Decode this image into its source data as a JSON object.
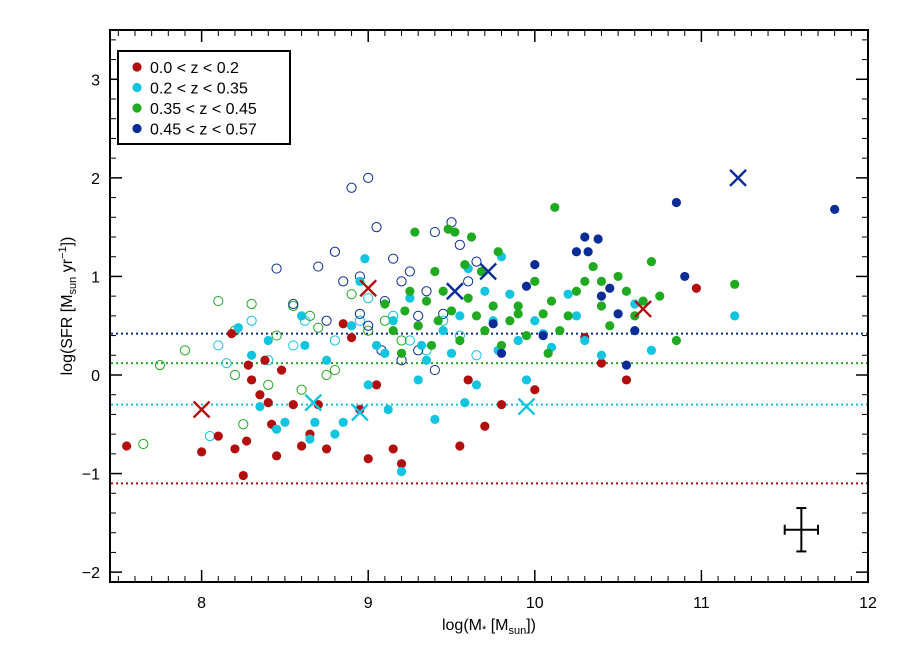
{
  "chart_data": {
    "type": "scatter",
    "title": "",
    "xlabel": "log(M* [Msun])",
    "xlabel_parts": {
      "pre": "log(M",
      "star": "*",
      "mid": " [M",
      "sub": "sun",
      "post": "])"
    },
    "ylabel": "log(SFR [Msun yr^-1])",
    "ylabel_parts": {
      "pre": "log(SFR [M",
      "sub": "sun",
      "mid": " yr",
      "sup": "−1",
      "post": "])"
    },
    "xlim": [
      7.45,
      12.0
    ],
    "ylim": [
      -2.1,
      3.5
    ],
    "xticks": [
      8,
      9,
      10,
      11,
      12
    ],
    "xtick_labels": [
      "8",
      "9",
      "10",
      "11",
      "12"
    ],
    "yticks": [
      -2,
      -1,
      0,
      1,
      2,
      3
    ],
    "ytick_labels": [
      "−2",
      "−1",
      "0",
      "1",
      "2",
      "3"
    ],
    "grid": false,
    "legend_position": "top-left",
    "series": [
      {
        "name": "0.0 < z < 0.2",
        "color": "#b30e0e",
        "sfr_limit": -1.1,
        "filled": [
          [
            7.55,
            -0.72
          ],
          [
            8.0,
            -0.78
          ],
          [
            8.1,
            -0.62
          ],
          [
            8.18,
            0.42
          ],
          [
            8.2,
            -0.75
          ],
          [
            8.25,
            -1.02
          ],
          [
            8.27,
            -0.67
          ],
          [
            8.28,
            0.1
          ],
          [
            8.3,
            -0.05
          ],
          [
            8.35,
            -0.2
          ],
          [
            8.38,
            0.15
          ],
          [
            8.4,
            -0.28
          ],
          [
            8.42,
            -0.5
          ],
          [
            8.45,
            -0.82
          ],
          [
            8.48,
            0.05
          ],
          [
            8.55,
            -0.3
          ],
          [
            8.6,
            -0.72
          ],
          [
            8.65,
            -0.6
          ],
          [
            8.7,
            -0.3
          ],
          [
            8.75,
            -0.75
          ],
          [
            8.85,
            0.52
          ],
          [
            8.9,
            0.38
          ],
          [
            8.95,
            -0.35
          ],
          [
            9.0,
            -0.85
          ],
          [
            9.05,
            -0.1
          ],
          [
            9.15,
            -0.75
          ],
          [
            9.2,
            -0.9
          ],
          [
            9.3,
            0.5
          ],
          [
            9.55,
            -0.72
          ],
          [
            9.6,
            -0.05
          ],
          [
            9.7,
            -0.52
          ],
          [
            9.8,
            -0.3
          ],
          [
            10.0,
            -0.15
          ],
          [
            10.3,
            0.38
          ],
          [
            10.4,
            0.12
          ],
          [
            10.55,
            -0.05
          ],
          [
            10.97,
            0.88
          ]
        ],
        "open": [],
        "crosses": [
          [
            8.0,
            -0.35
          ],
          [
            9.0,
            0.88
          ],
          [
            10.65,
            0.67
          ]
        ]
      },
      {
        "name": "0.2 < z < 0.35",
        "color": "#11c4e0",
        "sfr_limit": -0.3,
        "filled": [
          [
            8.22,
            0.48
          ],
          [
            8.3,
            0.2
          ],
          [
            8.35,
            -0.32
          ],
          [
            8.4,
            0.35
          ],
          [
            8.45,
            -0.55
          ],
          [
            8.5,
            -0.48
          ],
          [
            8.6,
            0.6
          ],
          [
            8.62,
            0.3
          ],
          [
            8.65,
            -0.65
          ],
          [
            8.68,
            -0.48
          ],
          [
            8.75,
            0.15
          ],
          [
            8.8,
            -0.6
          ],
          [
            8.85,
            -0.48
          ],
          [
            8.9,
            0.5
          ],
          [
            8.95,
            0.95
          ],
          [
            9.0,
            -0.1
          ],
          [
            9.05,
            0.3
          ],
          [
            9.1,
            0.22
          ],
          [
            9.12,
            -0.35
          ],
          [
            9.15,
            0.55
          ],
          [
            9.2,
            -0.98
          ],
          [
            9.25,
            0.78
          ],
          [
            9.3,
            -0.05
          ],
          [
            9.32,
            0.3
          ],
          [
            9.35,
            0.15
          ],
          [
            9.4,
            -0.45
          ],
          [
            9.5,
            0.22
          ],
          [
            9.55,
            0.6
          ],
          [
            9.58,
            -0.28
          ],
          [
            9.6,
            1.08
          ],
          [
            9.65,
            -0.1
          ],
          [
            9.7,
            0.85
          ],
          [
            9.75,
            0.55
          ],
          [
            9.78,
            0.25
          ],
          [
            9.8,
            1.2
          ],
          [
            9.85,
            0.82
          ],
          [
            9.9,
            0.35
          ],
          [
            9.95,
            -0.05
          ],
          [
            10.0,
            0.55
          ],
          [
            10.05,
            0.42
          ],
          [
            10.1,
            0.28
          ],
          [
            10.2,
            0.82
          ],
          [
            10.25,
            0.6
          ],
          [
            10.3,
            0.35
          ],
          [
            10.4,
            0.2
          ],
          [
            10.5,
            0.62
          ],
          [
            10.6,
            0.72
          ],
          [
            10.7,
            0.25
          ],
          [
            11.2,
            0.6
          ],
          [
            8.98,
            1.18
          ],
          [
            9.45,
            0.45
          ]
        ],
        "open": [
          [
            8.05,
            -0.62
          ],
          [
            8.1,
            0.3
          ],
          [
            8.15,
            0.12
          ],
          [
            8.3,
            0.55
          ],
          [
            8.4,
            0.15
          ],
          [
            8.55,
            0.3
          ],
          [
            8.62,
            0.55
          ],
          [
            8.8,
            0.35
          ],
          [
            8.95,
            0.55
          ],
          [
            9.0,
            0.78
          ],
          [
            9.15,
            0.6
          ],
          [
            9.25,
            0.35
          ],
          [
            9.35,
            0.25
          ],
          [
            9.45,
            0.55
          ],
          [
            9.55,
            0.4
          ],
          [
            9.65,
            0.2
          ]
        ],
        "crosses": [
          [
            8.67,
            -0.28
          ],
          [
            8.95,
            -0.38
          ],
          [
            9.95,
            -0.32
          ]
        ]
      },
      {
        "name": "0.35 < z < 0.45",
        "color": "#1faa1f",
        "sfr_limit": 0.12,
        "filled": [
          [
            9.1,
            0.72
          ],
          [
            9.15,
            0.45
          ],
          [
            9.2,
            0.22
          ],
          [
            9.22,
            0.65
          ],
          [
            9.25,
            0.85
          ],
          [
            9.28,
            1.45
          ],
          [
            9.3,
            0.5
          ],
          [
            9.35,
            0.75
          ],
          [
            9.38,
            0.3
          ],
          [
            9.4,
            1.05
          ],
          [
            9.42,
            0.55
          ],
          [
            9.45,
            0.85
          ],
          [
            9.48,
            1.48
          ],
          [
            9.5,
            0.65
          ],
          [
            9.52,
            1.45
          ],
          [
            9.55,
            0.35
          ],
          [
            9.58,
            1.12
          ],
          [
            9.6,
            0.78
          ],
          [
            9.62,
            1.4
          ],
          [
            9.65,
            0.6
          ],
          [
            9.68,
            1.05
          ],
          [
            9.7,
            0.45
          ],
          [
            9.75,
            0.7
          ],
          [
            9.78,
            1.25
          ],
          [
            9.8,
            0.3
          ],
          [
            9.85,
            0.55
          ],
          [
            9.9,
            0.7
          ],
          [
            9.95,
            0.4
          ],
          [
            10.0,
            0.95
          ],
          [
            10.05,
            0.62
          ],
          [
            10.08,
            0.22
          ],
          [
            10.1,
            0.75
          ],
          [
            10.12,
            1.7
          ],
          [
            10.15,
            0.45
          ],
          [
            10.2,
            0.6
          ],
          [
            10.25,
            0.85
          ],
          [
            10.3,
            0.95
          ],
          [
            10.35,
            1.1
          ],
          [
            10.4,
            0.7
          ],
          [
            10.45,
            0.5
          ],
          [
            10.5,
            1.0
          ],
          [
            10.55,
            0.85
          ],
          [
            10.6,
            0.6
          ],
          [
            10.65,
            0.75
          ],
          [
            10.7,
            1.15
          ],
          [
            10.75,
            0.8
          ],
          [
            10.85,
            0.35
          ],
          [
            11.2,
            0.92
          ],
          [
            9.9,
            0.62
          ],
          [
            10.4,
            0.95
          ]
        ],
        "open": [
          [
            7.75,
            0.1
          ],
          [
            7.9,
            0.25
          ],
          [
            8.1,
            0.75
          ],
          [
            8.2,
            0.45
          ],
          [
            8.3,
            0.72
          ],
          [
            8.45,
            0.4
          ],
          [
            8.55,
            0.7
          ],
          [
            8.65,
            0.6
          ],
          [
            8.7,
            0.48
          ],
          [
            8.8,
            0.05
          ],
          [
            8.9,
            0.82
          ],
          [
            9.0,
            0.45
          ],
          [
            9.1,
            0.55
          ],
          [
            9.2,
            0.35
          ],
          [
            7.65,
            -0.7
          ],
          [
            8.2,
            0.0
          ],
          [
            8.25,
            -0.5
          ],
          [
            8.4,
            -0.1
          ],
          [
            8.6,
            -0.15
          ],
          [
            8.75,
            0.0
          ]
        ],
        "crosses": []
      },
      {
        "name": "0.45 < z < 0.57",
        "color": "#0a2c96",
        "sfr_limit": 0.42,
        "filled": [
          [
            9.75,
            0.52
          ],
          [
            9.8,
            0.22
          ],
          [
            9.95,
            0.9
          ],
          [
            10.0,
            1.12
          ],
          [
            10.05,
            0.4
          ],
          [
            10.25,
            1.25
          ],
          [
            10.3,
            1.4
          ],
          [
            10.32,
            1.25
          ],
          [
            10.38,
            1.38
          ],
          [
            10.4,
            0.8
          ],
          [
            10.45,
            0.88
          ],
          [
            10.5,
            0.62
          ],
          [
            10.6,
            0.45
          ],
          [
            10.85,
            1.75
          ],
          [
            10.9,
            1.0
          ],
          [
            11.8,
            1.68
          ],
          [
            10.55,
            0.1
          ]
        ],
        "open": [
          [
            8.45,
            1.08
          ],
          [
            8.55,
            0.72
          ],
          [
            8.7,
            1.1
          ],
          [
            8.75,
            0.55
          ],
          [
            8.8,
            1.25
          ],
          [
            8.85,
            0.95
          ],
          [
            8.9,
            1.9
          ],
          [
            8.95,
            1.0
          ],
          [
            9.0,
            2.0
          ],
          [
            9.05,
            1.5
          ],
          [
            9.1,
            0.75
          ],
          [
            9.15,
            1.18
          ],
          [
            9.2,
            0.95
          ],
          [
            9.25,
            1.05
          ],
          [
            9.3,
            0.6
          ],
          [
            9.35,
            0.85
          ],
          [
            9.4,
            1.45
          ],
          [
            9.45,
            0.62
          ],
          [
            9.5,
            1.55
          ],
          [
            9.55,
            1.32
          ],
          [
            9.6,
            0.95
          ],
          [
            9.65,
            1.15
          ],
          [
            8.95,
            0.62
          ],
          [
            9.0,
            0.5
          ],
          [
            9.08,
            0.25
          ],
          [
            9.2,
            0.15
          ],
          [
            9.3,
            0.25
          ],
          [
            9.4,
            0.05
          ]
        ],
        "crosses": [
          [
            9.52,
            0.85
          ],
          [
            9.72,
            1.05
          ],
          [
            11.22,
            2.0
          ]
        ]
      }
    ],
    "error_bar": {
      "x": 11.6,
      "y": -1.57,
      "xerr": 0.1,
      "yerr": 0.22,
      "color": "#000000"
    }
  }
}
